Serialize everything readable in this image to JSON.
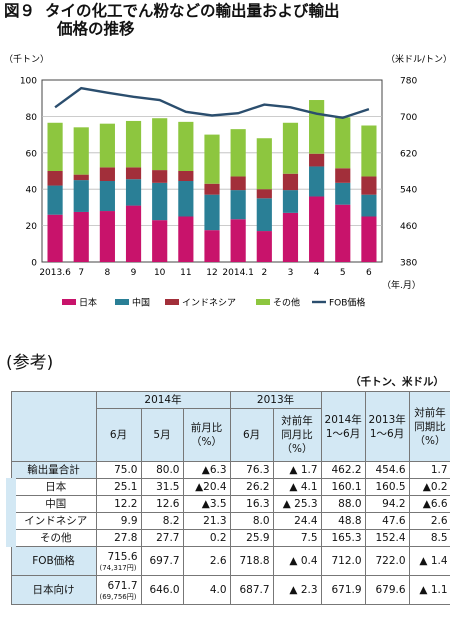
{
  "figure": {
    "num": "図９",
    "title_line1": "タイの化工でん粉などの輸出量および輸出",
    "title_line2": "価格の推移"
  },
  "chart_data": {
    "type": "bar",
    "stacked": true,
    "categories": [
      "2013.6",
      "7",
      "8",
      "9",
      "10",
      "11",
      "12",
      "2014.1",
      "2",
      "3",
      "4",
      "5",
      "6"
    ],
    "x_unit": "（年.月）",
    "y_left_unit": "（千トン）",
    "y_right_unit": "（米ドル/トン）",
    "ylim_left": [
      0,
      100
    ],
    "yticks_left": [
      0,
      20,
      40,
      60,
      80,
      100
    ],
    "ylim_right": [
      380,
      780
    ],
    "yticks_right": [
      380,
      460,
      540,
      620,
      700,
      780
    ],
    "grid": true,
    "legend_position": "bottom",
    "series": [
      {
        "name": "日本",
        "color": "#c8136b",
        "values": [
          26,
          27.5,
          28,
          31,
          23,
          25,
          17.5,
          23.5,
          17,
          27,
          36,
          31.5,
          25
        ]
      },
      {
        "name": "中国",
        "color": "#2a7f96",
        "values": [
          16,
          17.5,
          16.5,
          14.5,
          20.5,
          19.5,
          19.5,
          16,
          18,
          12.5,
          16.5,
          12,
          12
        ]
      },
      {
        "name": "インドネシア",
        "color": "#a22f3a",
        "values": [
          8,
          3,
          7.5,
          6.5,
          7,
          5.5,
          6,
          7.5,
          5,
          9,
          7,
          8,
          10
        ]
      },
      {
        "name": "その他",
        "color": "#8dc63f",
        "values": [
          26.5,
          26,
          24,
          25.5,
          28.5,
          27,
          27,
          26,
          28,
          28,
          29.5,
          28,
          28
        ]
      }
    ],
    "line_series": {
      "name": "FOB価格",
      "color": "#2b4e6e",
      "axis": "right",
      "values": [
        720,
        762,
        752,
        743,
        736,
        710,
        702,
        707,
        726,
        720,
        706,
        697,
        716
      ]
    }
  },
  "ref_title": "(参考)",
  "ref_unit": "（千トン、米ドル）",
  "table": {
    "h_2014": "2014年",
    "h_2013": "2013年",
    "h_2014_h1_a": "2014年",
    "h_2014_h1_b": "1〜6月",
    "h_2013_h1_a": "2013年",
    "h_2013_h1_b": "1〜6月",
    "h_jun": "6月",
    "h_may": "5月",
    "h_mom_a": "前月比",
    "h_mom_b": "（%）",
    "h_jun13": "6月",
    "h_yoy_a": "対前年",
    "h_yoy_b": "同月比",
    "h_yoy_c": "（%）",
    "h_yoyp_a": "対前年",
    "h_yoyp_b": "同期比",
    "h_yoyp_c": "（%）",
    "rows": [
      {
        "label": "輸出量合計",
        "vals": [
          "75.0",
          "80.0",
          "▲6.3",
          "76.3",
          "▲ 1.7",
          "462.2",
          "454.6",
          "1.7"
        ]
      },
      {
        "label": "日本",
        "vals": [
          "25.1",
          "31.5",
          "▲20.4",
          "26.2",
          "▲ 4.1",
          "160.1",
          "160.5",
          "▲0.2"
        ]
      },
      {
        "label": "中国",
        "vals": [
          "12.2",
          "12.6",
          "▲3.5",
          "16.3",
          "▲ 25.3",
          "88.0",
          "94.2",
          "▲6.6"
        ]
      },
      {
        "label": "インドネシア",
        "vals": [
          "9.9",
          "8.2",
          "21.3",
          "8.0",
          "24.4",
          "48.8",
          "47.6",
          "2.6"
        ]
      },
      {
        "label": "その他",
        "vals": [
          "27.8",
          "27.7",
          "0.2",
          "25.9",
          "7.5",
          "165.3",
          "152.4",
          "8.5"
        ]
      },
      {
        "label": "FOB価格",
        "vals": [
          "715.6",
          "697.7",
          "2.6",
          "718.8",
          "▲ 0.4",
          "712.0",
          "722.0",
          "▲ 1.4"
        ],
        "sub": "(74,317円)"
      },
      {
        "label": "日本向け",
        "vals": [
          "671.7",
          "646.0",
          "4.0",
          "687.7",
          "▲ 2.3",
          "671.9",
          "679.6",
          "▲ 1.1"
        ],
        "sub": "(69,756円)"
      }
    ]
  }
}
